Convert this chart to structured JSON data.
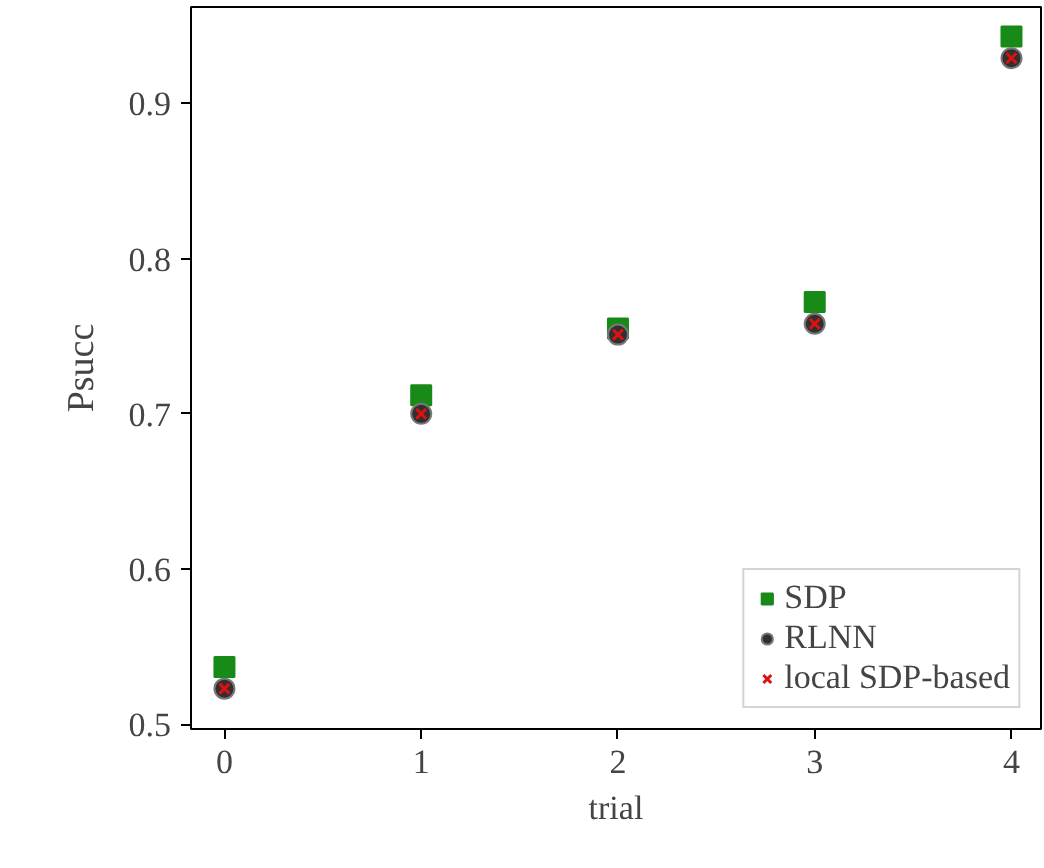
{
  "chart_data": {
    "type": "scatter",
    "xlabel": "trial",
    "ylabel": "Psucc",
    "x": [
      0,
      1,
      2,
      3,
      4
    ],
    "series": [
      {
        "name": "SDP",
        "color": "#178a17",
        "marker": "square",
        "values": [
          0.537,
          0.712,
          0.755,
          0.772,
          0.943
        ]
      },
      {
        "name": "RLNN",
        "color": "#303030",
        "marker": "circle",
        "values": [
          0.523,
          0.7,
          0.751,
          0.758,
          0.929
        ]
      },
      {
        "name": "local SDP-based",
        "color": "#e01010",
        "marker": "cross",
        "values": [
          0.523,
          0.7,
          0.751,
          0.758,
          0.929
        ]
      }
    ],
    "xlim": [
      -0.17,
      4.15
    ],
    "ylim": [
      0.497,
      0.962
    ],
    "xticks": [
      0,
      1,
      2,
      3,
      4
    ],
    "yticks": [
      0.5,
      0.6,
      0.7,
      0.8,
      0.9
    ],
    "grid": false,
    "legend": "bottom right"
  }
}
